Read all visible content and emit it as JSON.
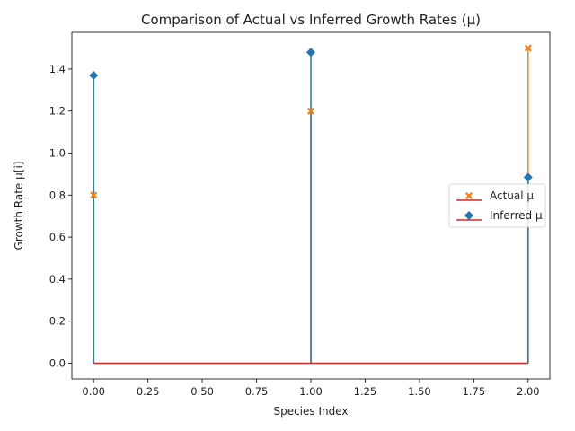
{
  "chart_data": {
    "type": "stem",
    "title": "Comparison of Actual vs Inferred Growth Rates (μ)",
    "xlabel": "Species Index",
    "ylabel": "Growth Rate μ[i]",
    "xlim": [
      -0.1,
      2.1
    ],
    "ylim": [
      -0.075,
      1.575
    ],
    "xticks": [
      0.0,
      0.25,
      0.5,
      0.75,
      1.0,
      1.25,
      1.5,
      1.75,
      2.0
    ],
    "xtick_labels": [
      "0.00",
      "0.25",
      "0.50",
      "0.75",
      "1.00",
      "1.25",
      "1.50",
      "1.75",
      "2.00"
    ],
    "yticks": [
      0.0,
      0.2,
      0.4,
      0.6,
      0.8,
      1.0,
      1.2,
      1.4
    ],
    "ytick_labels": [
      "0.0",
      "0.2",
      "0.4",
      "0.6",
      "0.8",
      "1.0",
      "1.2",
      "1.4"
    ],
    "grid": false,
    "legend_position": "center-right",
    "baseline": 0,
    "baseline_color": "#d62728",
    "x": [
      0,
      1,
      2
    ],
    "series": [
      {
        "name": "Actual μ",
        "values": [
          0.8,
          1.2,
          1.5
        ],
        "color": "#ff7f0e",
        "marker": "X"
      },
      {
        "name": "Inferred μ",
        "values": [
          1.37,
          1.48,
          0.885
        ],
        "color": "#1f77b4",
        "marker": "D"
      }
    ]
  }
}
